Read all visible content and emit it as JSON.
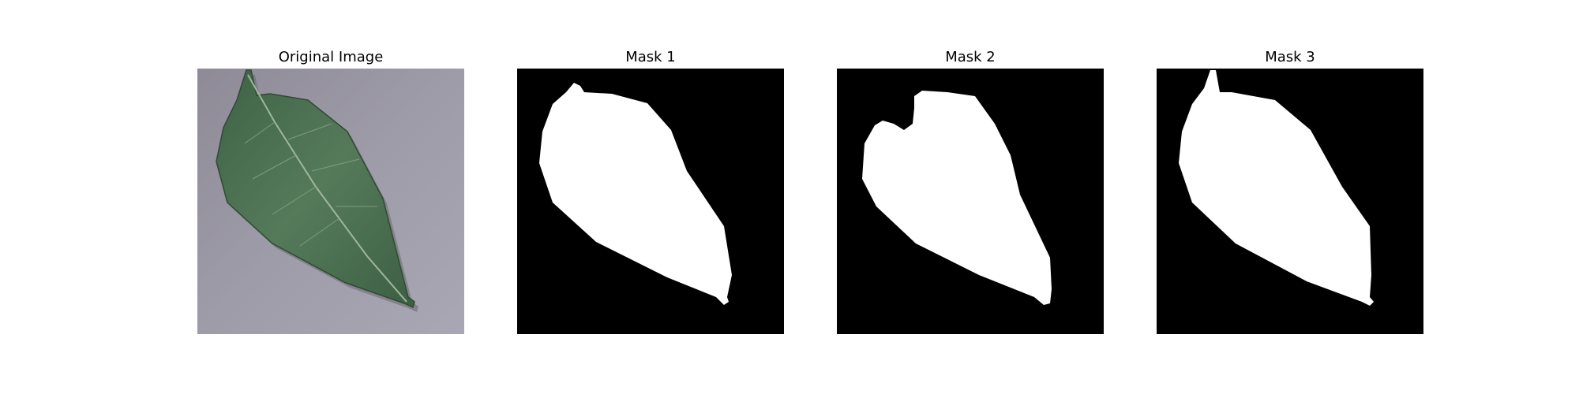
{
  "panels": [
    {
      "title": "Original Image"
    },
    {
      "title": "Mask 1"
    },
    {
      "title": "Mask 2"
    },
    {
      "title": "Mask 3"
    }
  ],
  "colors": {
    "background": "#9a98a6",
    "leaf": "#4a6a4c",
    "mask_background": "#000000",
    "mask_foreground": "#ffffff"
  }
}
